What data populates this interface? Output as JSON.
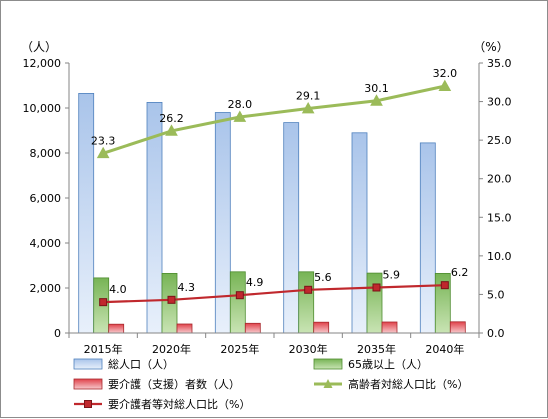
{
  "chart_data": {
    "type": "bar",
    "categories": [
      "2015年",
      "2020年",
      "2025年",
      "2030年",
      "2035年",
      "2040年"
    ],
    "left_axis": {
      "unit": "（人）",
      "ylim": [
        0,
        12000
      ],
      "ticks": [
        "0",
        "2,000",
        "4,000",
        "6,000",
        "8,000",
        "10,000",
        "12,000"
      ],
      "tick_values": [
        0,
        2000,
        4000,
        6000,
        8000,
        10000,
        12000
      ]
    },
    "right_axis": {
      "unit": "（%）",
      "ylim": [
        0,
        35
      ],
      "ticks": [
        "0.0",
        "5.0",
        "10.0",
        "15.0",
        "20.0",
        "25.0",
        "30.0",
        "35.0"
      ],
      "tick_values": [
        0,
        5,
        10,
        15,
        20,
        25,
        30,
        35
      ]
    },
    "series": [
      {
        "name": "総人口（人）",
        "kind": "bar",
        "axis": "left",
        "values": [
          10650,
          10250,
          9800,
          9350,
          8900,
          8450
        ],
        "color": "#4f81bd"
      },
      {
        "name": "65歳以上（人）",
        "kind": "bar",
        "axis": "left",
        "values": [
          2450,
          2650,
          2720,
          2720,
          2660,
          2650
        ],
        "color": "#70ad47"
      },
      {
        "name": "要介護（支援）者数（人）",
        "kind": "bar",
        "axis": "left",
        "values": [
          390,
          400,
          430,
          480,
          490,
          500
        ],
        "color": "#c0504d"
      },
      {
        "name": "高齢者対総人口比（%）",
        "kind": "line",
        "axis": "right",
        "values": [
          23.3,
          26.2,
          28.0,
          29.1,
          30.1,
          32.0
        ],
        "labels": [
          "23.3",
          "26.2",
          "28.0",
          "29.1",
          "30.1",
          "32.0"
        ],
        "color": "#9bbb59",
        "marker": "triangle"
      },
      {
        "name": "要介護者等対総人口比（%）",
        "kind": "line",
        "axis": "right",
        "values": [
          4.0,
          4.3,
          4.9,
          5.6,
          5.9,
          6.2
        ],
        "labels": [
          "4.0",
          "4.3",
          "4.9",
          "5.6",
          "5.9",
          "6.2"
        ],
        "color": "#c0282d",
        "marker": "square"
      }
    ],
    "grid": false,
    "legend_position": "bottom"
  }
}
